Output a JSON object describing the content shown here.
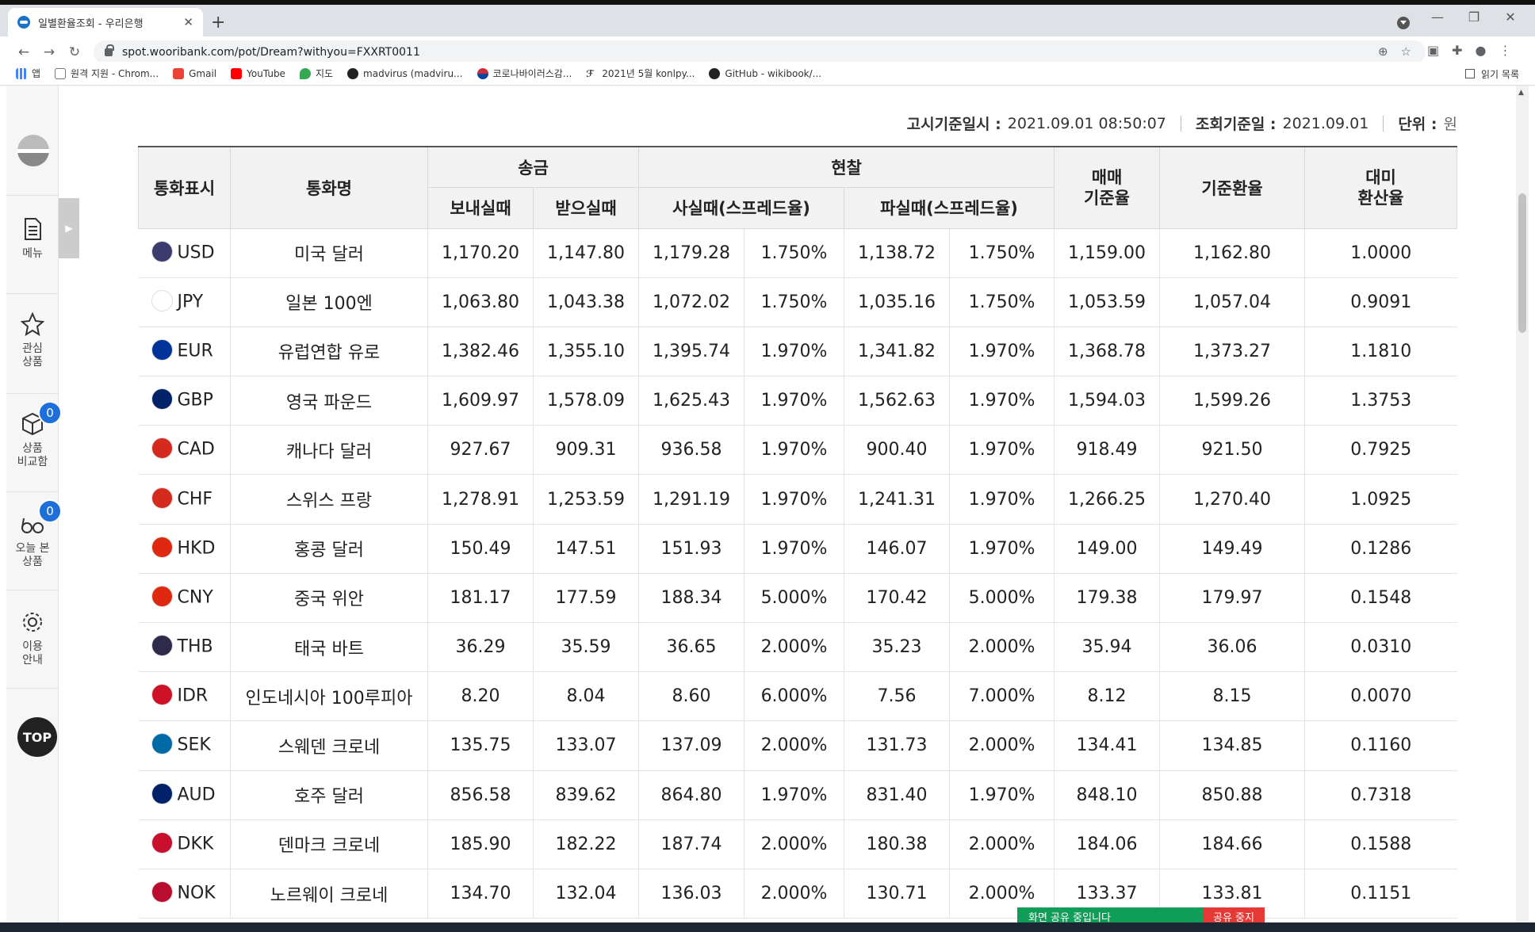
{
  "browser": {
    "tab_title": "일별환율조회 - 우리은행",
    "url": "spot.wooribank.com/pot/Dream?withyou=FXXRT0011",
    "bookmarks": [
      "앱",
      "원격 지원 - Chrom...",
      "Gmail",
      "YouTube",
      "지도",
      "madvirus (madviru...",
      "코로나바이러스감...",
      "2021년 5월 konlpy...",
      "GitHub - wikibook/..."
    ],
    "reading_list": "읽기 목록"
  },
  "rail": {
    "menu": "메뉴",
    "fav": "관심\n상품",
    "compare": "상품\n비교함",
    "compare_count": "0",
    "today": "오늘 본\n상품",
    "today_count": "0",
    "guide": "이용\n안내",
    "top": "TOP"
  },
  "meta": {
    "notice_label": "고시기준일시 :",
    "notice_value": "2021.09.01 08:50:07",
    "query_label": "조회기준일 :",
    "query_value": "2021.09.01",
    "unit_label": "단위 :",
    "unit_value": "원"
  },
  "headers": {
    "code": "통화표시",
    "name": "통화명",
    "remit": "송금",
    "cash": "현찰",
    "trade_rate": "매매\n기준율",
    "base_rate": "기준환율",
    "usd_rate": "대미\n환산율",
    "send": "보내실때",
    "receive": "받으실때",
    "buy": "사실때(스프레드율)",
    "sell": "파실때(스프레드율)"
  },
  "rows": [
    {
      "code": "USD",
      "name": "미국 달러",
      "send": "1,170.20",
      "recv": "1,147.80",
      "buy": "1,179.28",
      "buy_sp": "1.750%",
      "sell": "1,138.72",
      "sell_sp": "1.750%",
      "trade": "1,159.00",
      "base": "1,162.80",
      "usd": "1.0000",
      "flag": "#3c3b6e"
    },
    {
      "code": "JPY",
      "name": "일본 100엔",
      "send": "1,063.80",
      "recv": "1,043.38",
      "buy": "1,072.02",
      "buy_sp": "1.750%",
      "sell": "1,035.16",
      "sell_sp": "1.750%",
      "trade": "1,053.59",
      "base": "1,057.04",
      "usd": "0.9091",
      "flag": "#ffffff"
    },
    {
      "code": "EUR",
      "name": "유럽연합 유로",
      "send": "1,382.46",
      "recv": "1,355.10",
      "buy": "1,395.74",
      "buy_sp": "1.970%",
      "sell": "1,341.82",
      "sell_sp": "1.970%",
      "trade": "1,368.78",
      "base": "1,373.27",
      "usd": "1.1810",
      "flag": "#003399"
    },
    {
      "code": "GBP",
      "name": "영국 파운드",
      "send": "1,609.97",
      "recv": "1,578.09",
      "buy": "1,625.43",
      "buy_sp": "1.970%",
      "sell": "1,562.63",
      "sell_sp": "1.970%",
      "trade": "1,594.03",
      "base": "1,599.26",
      "usd": "1.3753",
      "flag": "#012169"
    },
    {
      "code": "CAD",
      "name": "캐나다 달러",
      "send": "927.67",
      "recv": "909.31",
      "buy": "936.58",
      "buy_sp": "1.970%",
      "sell": "900.40",
      "sell_sp": "1.970%",
      "trade": "918.49",
      "base": "921.50",
      "usd": "0.7925",
      "flag": "#d52b1e"
    },
    {
      "code": "CHF",
      "name": "스위스 프랑",
      "send": "1,278.91",
      "recv": "1,253.59",
      "buy": "1,291.19",
      "buy_sp": "1.970%",
      "sell": "1,241.31",
      "sell_sp": "1.970%",
      "trade": "1,266.25",
      "base": "1,270.40",
      "usd": "1.0925",
      "flag": "#d52b1e"
    },
    {
      "code": "HKD",
      "name": "홍콩 달러",
      "send": "150.49",
      "recv": "147.51",
      "buy": "151.93",
      "buy_sp": "1.970%",
      "sell": "146.07",
      "sell_sp": "1.970%",
      "trade": "149.00",
      "base": "149.49",
      "usd": "0.1286",
      "flag": "#de2910"
    },
    {
      "code": "CNY",
      "name": "중국 위안",
      "send": "181.17",
      "recv": "177.59",
      "buy": "188.34",
      "buy_sp": "5.000%",
      "sell": "170.42",
      "sell_sp": "5.000%",
      "trade": "179.38",
      "base": "179.97",
      "usd": "0.1548",
      "flag": "#de2910"
    },
    {
      "code": "THB",
      "name": "태국 바트",
      "send": "36.29",
      "recv": "35.59",
      "buy": "36.65",
      "buy_sp": "2.000%",
      "sell": "35.23",
      "sell_sp": "2.000%",
      "trade": "35.94",
      "base": "36.06",
      "usd": "0.0310",
      "flag": "#2d2a4a"
    },
    {
      "code": "IDR",
      "name": "인도네시아 100루피아",
      "send": "8.20",
      "recv": "8.04",
      "buy": "8.60",
      "buy_sp": "6.000%",
      "sell": "7.56",
      "sell_sp": "7.000%",
      "trade": "8.12",
      "base": "8.15",
      "usd": "0.0070",
      "flag": "#ce1126"
    },
    {
      "code": "SEK",
      "name": "스웨덴 크로네",
      "send": "135.75",
      "recv": "133.07",
      "buy": "137.09",
      "buy_sp": "2.000%",
      "sell": "131.73",
      "sell_sp": "2.000%",
      "trade": "134.41",
      "base": "134.85",
      "usd": "0.1160",
      "flag": "#006aa7"
    },
    {
      "code": "AUD",
      "name": "호주 달러",
      "send": "856.58",
      "recv": "839.62",
      "buy": "864.80",
      "buy_sp": "1.970%",
      "sell": "831.40",
      "sell_sp": "1.970%",
      "trade": "848.10",
      "base": "850.88",
      "usd": "0.7318",
      "flag": "#012169"
    },
    {
      "code": "DKK",
      "name": "덴마크 크로네",
      "send": "185.90",
      "recv": "182.22",
      "buy": "187.74",
      "buy_sp": "2.000%",
      "sell": "180.38",
      "sell_sp": "2.000%",
      "trade": "184.06",
      "base": "184.66",
      "usd": "0.1588",
      "flag": "#c8102e"
    },
    {
      "code": "NOK",
      "name": "노르웨이 크로네",
      "send": "134.70",
      "recv": "132.04",
      "buy": "136.03",
      "buy_sp": "2.000%",
      "sell": "130.71",
      "sell_sp": "2.000%",
      "trade": "133.37",
      "base": "133.81",
      "usd": "0.1151",
      "flag": "#ba0c2f"
    }
  ],
  "share": {
    "status": "화면 공유 중입니다",
    "stop": "공유 중지"
  }
}
